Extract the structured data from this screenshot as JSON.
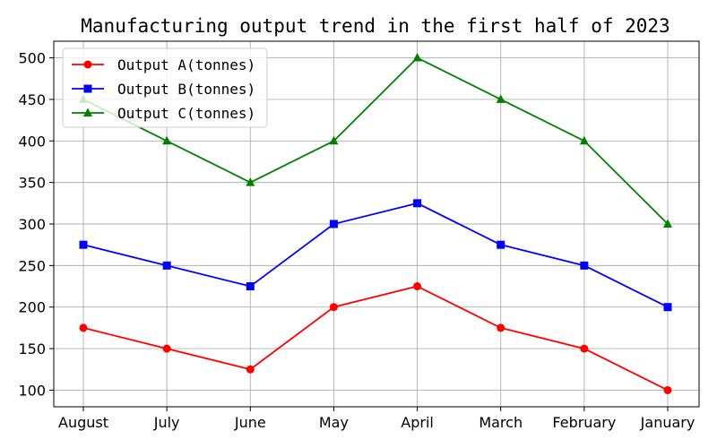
{
  "chart_data": {
    "type": "line",
    "title": "Manufacturing output trend in the first half of 2023",
    "xlabel": "",
    "ylabel": "",
    "categories": [
      "August",
      "July",
      "June",
      "May",
      "April",
      "March",
      "February",
      "January"
    ],
    "ylim": [
      80,
      520
    ],
    "yticks": [
      100,
      150,
      200,
      250,
      300,
      350,
      400,
      450,
      500
    ],
    "grid": true,
    "legend_position": "upper-left",
    "series": [
      {
        "name": "Output A(tonnes)",
        "color": "#ff0000",
        "marker": "circle",
        "values": [
          175,
          150,
          125,
          200,
          225,
          175,
          150,
          100
        ]
      },
      {
        "name": "Output B(tonnes)",
        "color": "#0000ff",
        "marker": "square",
        "values": [
          275,
          250,
          225,
          300,
          325,
          275,
          250,
          200
        ]
      },
      {
        "name": "Output C(tonnes)",
        "color": "#008000",
        "marker": "triangle",
        "values": [
          450,
          400,
          350,
          400,
          500,
          450,
          400,
          300
        ]
      }
    ]
  }
}
